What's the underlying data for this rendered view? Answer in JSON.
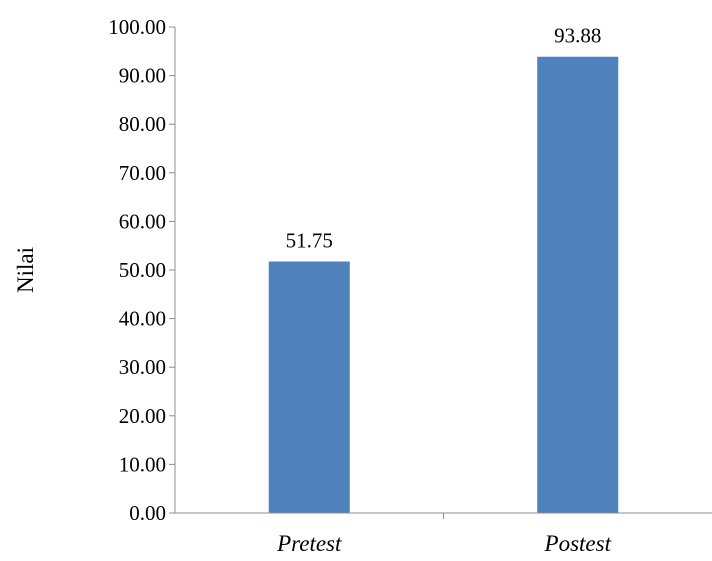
{
  "chart_data": {
    "type": "bar",
    "categories": [
      "Pretest",
      "Postest"
    ],
    "values": [
      51.75,
      93.88
    ],
    "data_labels": [
      "51.75",
      "93.88"
    ],
    "title": "",
    "xlabel": "",
    "ylabel": "Nilai",
    "ylim": [
      0,
      100
    ],
    "yticks": [
      "0.00",
      "10.00",
      "20.00",
      "30.00",
      "40.00",
      "50.00",
      "60.00",
      "70.00",
      "80.00",
      "90.00",
      "100.00"
    ],
    "grid": false,
    "legend": "none",
    "bar_color": "#4F81BD"
  }
}
